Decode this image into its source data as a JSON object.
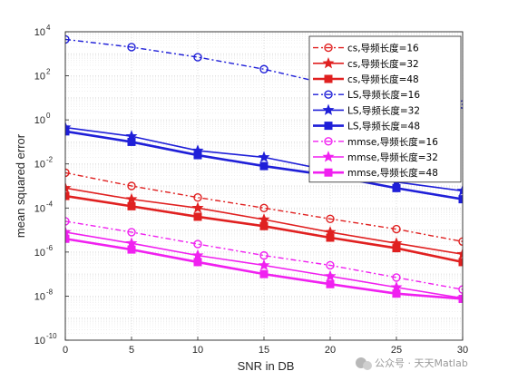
{
  "chart_data": {
    "type": "line",
    "xlabel": "SNR in DB",
    "ylabel": "mean squared error",
    "xlim": [
      0,
      30
    ],
    "ylim_exponents": [
      -10,
      4
    ],
    "yscale": "log",
    "grid": true,
    "legend_position": "top-right",
    "x": [
      0,
      5,
      10,
      15,
      20,
      25,
      30
    ],
    "x_tick_labels": [
      "0",
      "5",
      "10",
      "15",
      "20",
      "25",
      "30"
    ],
    "y_tick_exponents": [
      "-10",
      "-8",
      "-6",
      "-4",
      "-2",
      "0",
      "2",
      "4"
    ],
    "y_tick_base": "10",
    "series": [
      {
        "name": "cs,导频长度=16",
        "color": "#e02020",
        "marker": "circle",
        "dash": "6,3,2,3",
        "width": 1.4,
        "values": [
          0.004,
          0.001,
          0.0003,
          0.0001,
          3.2e-05,
          1.1e-05,
          3e-06
        ]
      },
      {
        "name": "cs,导频长度=32",
        "color": "#e02020",
        "marker": "star",
        "dash": "",
        "width": 1.6,
        "values": [
          0.0008,
          0.00025,
          0.0001,
          3e-05,
          8e-06,
          2.5e-06,
          8e-07
        ]
      },
      {
        "name": "cs,导频长度=48",
        "color": "#e02020",
        "marker": "square",
        "dash": "",
        "width": 2.6,
        "values": [
          0.00035,
          0.00012,
          4e-05,
          1.5e-05,
          4.5e-06,
          1.5e-06,
          3.5e-07
        ]
      },
      {
        "name": "LS,导频长度=16",
        "color": "#1f1fd8",
        "marker": "circle",
        "dash": "6,3,2,3",
        "width": 1.4,
        "values": [
          4500,
          2000,
          700,
          200,
          40,
          14,
          5
        ]
      },
      {
        "name": "LS,导频长度=32",
        "color": "#1f1fd8",
        "marker": "star",
        "dash": "",
        "width": 1.6,
        "values": [
          0.45,
          0.18,
          0.04,
          0.02,
          0.005,
          0.0015,
          0.0006
        ]
      },
      {
        "name": "LS,导频长度=48",
        "color": "#1f1fd8",
        "marker": "square",
        "dash": "",
        "width": 2.6,
        "values": [
          0.3,
          0.1,
          0.025,
          0.008,
          0.003,
          0.0008,
          0.00025
        ]
      },
      {
        "name": "mmse,导频长度=16",
        "color": "#f020f0",
        "marker": "circle",
        "dash": "6,3,2,3",
        "width": 1.4,
        "values": [
          2.5e-05,
          8e-06,
          2.3e-06,
          7e-07,
          2.5e-07,
          7e-08,
          2e-08
        ]
      },
      {
        "name": "mmse,导频长度=32",
        "color": "#f020f0",
        "marker": "star",
        "dash": "",
        "width": 1.6,
        "values": [
          8e-06,
          2.5e-06,
          7e-07,
          2.5e-07,
          8e-08,
          2.5e-08,
          8e-09
        ]
      },
      {
        "name": "mmse,导频长度=48",
        "color": "#f020f0",
        "marker": "square",
        "dash": "",
        "width": 2.6,
        "values": [
          4e-06,
          1.3e-06,
          3.5e-07,
          1e-07,
          3.5e-08,
          1.3e-08,
          7.5e-09
        ]
      }
    ]
  },
  "watermark": {
    "text": "公众号 · 天天Matlab",
    "icon": "wechat-icon"
  }
}
